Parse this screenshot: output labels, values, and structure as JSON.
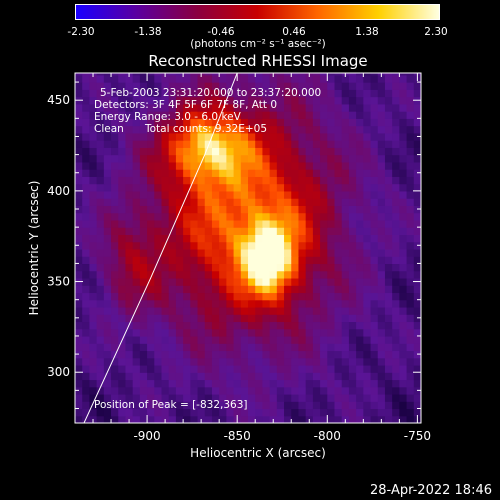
{
  "colorbar": {
    "ticks": [
      "-2.30",
      "-1.38",
      "-0.46",
      "0.46",
      "1.38",
      "2.30"
    ],
    "units_label": "(photons cm⁻² s⁻¹ asec⁻²)",
    "colors": [
      "#1a00ff",
      "#5a00a0",
      "#8a0040",
      "#c80000",
      "#ff6600",
      "#ffd000",
      "#ffffe0"
    ]
  },
  "chart_data": {
    "type": "heatmap",
    "title": "Reconstructed RHESSI Image",
    "xlabel": "Heliocentric X (arcsec)",
    "ylabel": "Heliocentric Y (arcsec)",
    "xlim": [
      -940,
      -748
    ],
    "ylim": [
      272,
      465
    ],
    "x_ticks": [
      -900,
      -850,
      -800,
      -750
    ],
    "y_ticks": [
      300,
      350,
      400,
      450
    ],
    "x_tick_labels": [
      "-900",
      "-850",
      "-800",
      "-750"
    ],
    "y_tick_labels": [
      "300",
      "350",
      "400",
      "450"
    ],
    "peaks": [
      {
        "x": -832,
        "y": 363,
        "intensity": 2.3
      },
      {
        "x": -868,
        "y": 425,
        "intensity": 2.1
      }
    ],
    "limb_line": [
      [
        -935,
        272
      ],
      [
        -898,
        352
      ],
      [
        -868,
        420
      ],
      [
        -850,
        465
      ]
    ],
    "annotations": {
      "time": "5-Feb-2003 23:31:20.000 to 23:37:20.000",
      "detectors": "Detectors: 3F 4F 5F 6F 7F 8F, Att 0",
      "energy": "Energy Range: 3.0 - 6.0 keV",
      "method": "Clean",
      "counts": "Total counts: 9.32E+05",
      "peak": "Position of Peak = [-832,363]"
    }
  },
  "footer": {
    "timestamp": "28-Apr-2022 18:46"
  }
}
